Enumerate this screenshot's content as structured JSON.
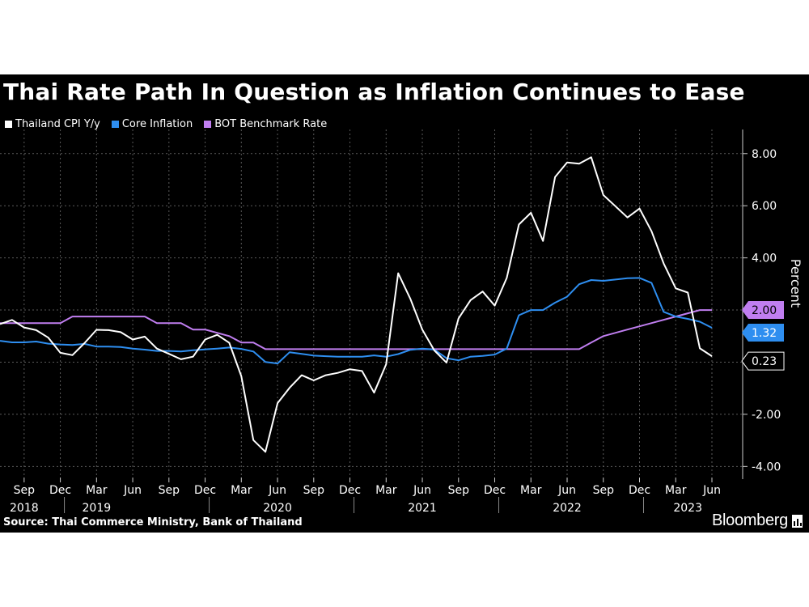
{
  "header": {
    "title": "Thai Rate Path In Question as Inflation Continues to Ease"
  },
  "footer": {
    "source": "Source: Thai Commerce Ministry, Bank of Thailand",
    "brand": "Bloomberg"
  },
  "chart_data": {
    "type": "line",
    "title": "Thai Rate Path In Question as Inflation Continues to Ease",
    "ylabel": "Percent",
    "ylim": [
      -4.3,
      8.8
    ],
    "y_ticks": [
      "8.00",
      "6.00",
      "4.00",
      "2.00",
      "0.00",
      "-2.00",
      "-4.00"
    ],
    "y_tick_values": [
      8,
      6,
      4,
      2,
      0,
      -2,
      -4
    ],
    "grid": true,
    "legend_position": "top-left",
    "x_start": "2018-07",
    "x_end": "2023-06",
    "x_tick_labels": [
      "Sep",
      "Dec",
      "Mar",
      "Jun",
      "Sep",
      "Dec",
      "Mar",
      "Jun",
      "Sep",
      "Dec",
      "Mar",
      "Jun",
      "Sep",
      "Dec",
      "Mar",
      "Jun",
      "Sep",
      "Dec",
      "Mar",
      "Jun"
    ],
    "x_tick_months": [
      "2018-09",
      "2018-12",
      "2019-03",
      "2019-06",
      "2019-09",
      "2019-12",
      "2020-03",
      "2020-06",
      "2020-09",
      "2020-12",
      "2021-03",
      "2021-06",
      "2021-09",
      "2021-12",
      "2022-03",
      "2022-06",
      "2022-09",
      "2022-12",
      "2023-03",
      "2023-06"
    ],
    "year_labels": [
      {
        "label": "2018",
        "month": "2018-09"
      },
      {
        "label": "2019",
        "month": "2019-03"
      },
      {
        "label": "2020",
        "month": "2020-06"
      },
      {
        "label": "2021",
        "month": "2021-06"
      },
      {
        "label": "2022",
        "month": "2022-06"
      },
      {
        "label": "2023",
        "month": "2023-04"
      }
    ],
    "year_separators": [
      "2018-12",
      "2019-12",
      "2020-12",
      "2021-12",
      "2022-12"
    ],
    "series": [
      {
        "name": "Thailand CPI Y/y",
        "color": "#ffffff",
        "end_label": "0.23",
        "values": [
          {
            "month": "2018-07",
            "y": 1.46
          },
          {
            "month": "2018-08",
            "y": 1.62
          },
          {
            "month": "2018-09",
            "y": 1.33
          },
          {
            "month": "2018-10",
            "y": 1.23
          },
          {
            "month": "2018-11",
            "y": 0.94
          },
          {
            "month": "2018-12",
            "y": 0.36
          },
          {
            "month": "2019-01",
            "y": 0.27
          },
          {
            "month": "2019-02",
            "y": 0.73
          },
          {
            "month": "2019-03",
            "y": 1.24
          },
          {
            "month": "2019-04",
            "y": 1.23
          },
          {
            "month": "2019-05",
            "y": 1.15
          },
          {
            "month": "2019-06",
            "y": 0.87
          },
          {
            "month": "2019-07",
            "y": 0.98
          },
          {
            "month": "2019-08",
            "y": 0.52
          },
          {
            "month": "2019-09",
            "y": 0.32
          },
          {
            "month": "2019-10",
            "y": 0.11
          },
          {
            "month": "2019-11",
            "y": 0.21
          },
          {
            "month": "2019-12",
            "y": 0.87
          },
          {
            "month": "2020-01",
            "y": 1.05
          },
          {
            "month": "2020-02",
            "y": 0.74
          },
          {
            "month": "2020-03",
            "y": -0.54
          },
          {
            "month": "2020-04",
            "y": -2.99
          },
          {
            "month": "2020-05",
            "y": -3.44
          },
          {
            "month": "2020-06",
            "y": -1.57
          },
          {
            "month": "2020-07",
            "y": -0.98
          },
          {
            "month": "2020-08",
            "y": -0.5
          },
          {
            "month": "2020-09",
            "y": -0.7
          },
          {
            "month": "2020-10",
            "y": -0.5
          },
          {
            "month": "2020-11",
            "y": -0.41
          },
          {
            "month": "2020-12",
            "y": -0.27
          },
          {
            "month": "2021-01",
            "y": -0.34
          },
          {
            "month": "2021-02",
            "y": -1.17
          },
          {
            "month": "2021-03",
            "y": -0.08
          },
          {
            "month": "2021-04",
            "y": 3.41
          },
          {
            "month": "2021-05",
            "y": 2.44
          },
          {
            "month": "2021-06",
            "y": 1.25
          },
          {
            "month": "2021-07",
            "y": 0.45
          },
          {
            "month": "2021-08",
            "y": -0.02
          },
          {
            "month": "2021-09",
            "y": 1.68
          },
          {
            "month": "2021-10",
            "y": 2.38
          },
          {
            "month": "2021-11",
            "y": 2.71
          },
          {
            "month": "2021-12",
            "y": 2.17
          },
          {
            "month": "2022-01",
            "y": 3.23
          },
          {
            "month": "2022-02",
            "y": 5.28
          },
          {
            "month": "2022-03",
            "y": 5.73
          },
          {
            "month": "2022-04",
            "y": 4.65
          },
          {
            "month": "2022-05",
            "y": 7.1
          },
          {
            "month": "2022-06",
            "y": 7.66
          },
          {
            "month": "2022-07",
            "y": 7.61
          },
          {
            "month": "2022-08",
            "y": 7.86
          },
          {
            "month": "2022-09",
            "y": 6.41
          },
          {
            "month": "2022-10",
            "y": 5.98
          },
          {
            "month": "2022-11",
            "y": 5.55
          },
          {
            "month": "2022-12",
            "y": 5.89
          },
          {
            "month": "2023-01",
            "y": 5.02
          },
          {
            "month": "2023-02",
            "y": 3.79
          },
          {
            "month": "2023-03",
            "y": 2.83
          },
          {
            "month": "2023-04",
            "y": 2.67
          },
          {
            "month": "2023-05",
            "y": 0.53
          },
          {
            "month": "2023-06",
            "y": 0.23
          }
        ]
      },
      {
        "name": "Core Inflation",
        "color": "#2e8ef0",
        "end_label": "1.32",
        "values": [
          {
            "month": "2018-07",
            "y": 0.82
          },
          {
            "month": "2018-08",
            "y": 0.76
          },
          {
            "month": "2018-09",
            "y": 0.76
          },
          {
            "month": "2018-10",
            "y": 0.79
          },
          {
            "month": "2018-11",
            "y": 0.71
          },
          {
            "month": "2018-12",
            "y": 0.68
          },
          {
            "month": "2019-01",
            "y": 0.66
          },
          {
            "month": "2019-02",
            "y": 0.7
          },
          {
            "month": "2019-03",
            "y": 0.6
          },
          {
            "month": "2019-04",
            "y": 0.6
          },
          {
            "month": "2019-05",
            "y": 0.58
          },
          {
            "month": "2019-06",
            "y": 0.52
          },
          {
            "month": "2019-07",
            "y": 0.48
          },
          {
            "month": "2019-08",
            "y": 0.43
          },
          {
            "month": "2019-09",
            "y": 0.43
          },
          {
            "month": "2019-10",
            "y": 0.41
          },
          {
            "month": "2019-11",
            "y": 0.46
          },
          {
            "month": "2019-12",
            "y": 0.49
          },
          {
            "month": "2020-01",
            "y": 0.52
          },
          {
            "month": "2020-02",
            "y": 0.56
          },
          {
            "month": "2020-03",
            "y": 0.51
          },
          {
            "month": "2020-04",
            "y": 0.41
          },
          {
            "month": "2020-05",
            "y": 0.01
          },
          {
            "month": "2020-06",
            "y": -0.05
          },
          {
            "month": "2020-07",
            "y": 0.38
          },
          {
            "month": "2020-08",
            "y": 0.32
          },
          {
            "month": "2020-09",
            "y": 0.25
          },
          {
            "month": "2020-10",
            "y": 0.23
          },
          {
            "month": "2020-11",
            "y": 0.21
          },
          {
            "month": "2020-12",
            "y": 0.21
          },
          {
            "month": "2021-01",
            "y": 0.21
          },
          {
            "month": "2021-02",
            "y": 0.26
          },
          {
            "month": "2021-03",
            "y": 0.21
          },
          {
            "month": "2021-04",
            "y": 0.31
          },
          {
            "month": "2021-05",
            "y": 0.47
          },
          {
            "month": "2021-06",
            "y": 0.52
          },
          {
            "month": "2021-07",
            "y": 0.48
          },
          {
            "month": "2021-08",
            "y": 0.15
          },
          {
            "month": "2021-09",
            "y": 0.07
          },
          {
            "month": "2021-10",
            "y": 0.21
          },
          {
            "month": "2021-11",
            "y": 0.24
          },
          {
            "month": "2021-12",
            "y": 0.29
          },
          {
            "month": "2022-01",
            "y": 0.52
          },
          {
            "month": "2022-02",
            "y": 1.8
          },
          {
            "month": "2022-03",
            "y": 2.0
          },
          {
            "month": "2022-04",
            "y": 2.0
          },
          {
            "month": "2022-05",
            "y": 2.28
          },
          {
            "month": "2022-06",
            "y": 2.51
          },
          {
            "month": "2022-07",
            "y": 2.99
          },
          {
            "month": "2022-08",
            "y": 3.15
          },
          {
            "month": "2022-09",
            "y": 3.12
          },
          {
            "month": "2022-10",
            "y": 3.17
          },
          {
            "month": "2022-11",
            "y": 3.22
          },
          {
            "month": "2022-12",
            "y": 3.23
          },
          {
            "month": "2023-01",
            "y": 3.04
          },
          {
            "month": "2023-02",
            "y": 1.93
          },
          {
            "month": "2023-03",
            "y": 1.75
          },
          {
            "month": "2023-04",
            "y": 1.66
          },
          {
            "month": "2023-05",
            "y": 1.55
          },
          {
            "month": "2023-06",
            "y": 1.32
          }
        ]
      },
      {
        "name": "BOT Benchmark Rate",
        "color": "#c07ef0",
        "end_label": "2.00",
        "values": [
          {
            "month": "2018-07",
            "y": 1.5
          },
          {
            "month": "2018-12",
            "y": 1.5
          },
          {
            "month": "2019-01",
            "y": 1.75
          },
          {
            "month": "2019-07",
            "y": 1.75
          },
          {
            "month": "2019-08",
            "y": 1.5
          },
          {
            "month": "2019-10",
            "y": 1.5
          },
          {
            "month": "2019-11",
            "y": 1.25
          },
          {
            "month": "2019-12",
            "y": 1.25
          },
          {
            "month": "2020-02",
            "y": 1.0
          },
          {
            "month": "2020-03",
            "y": 0.75
          },
          {
            "month": "2020-04",
            "y": 0.75
          },
          {
            "month": "2020-05",
            "y": 0.5
          },
          {
            "month": "2022-07",
            "y": 0.5
          },
          {
            "month": "2022-08",
            "y": 0.75
          },
          {
            "month": "2022-09",
            "y": 1.0
          },
          {
            "month": "2022-11",
            "y": 1.25
          },
          {
            "month": "2023-01",
            "y": 1.5
          },
          {
            "month": "2023-03",
            "y": 1.75
          },
          {
            "month": "2023-05",
            "y": 2.0
          },
          {
            "month": "2023-06",
            "y": 2.0
          }
        ]
      }
    ]
  }
}
